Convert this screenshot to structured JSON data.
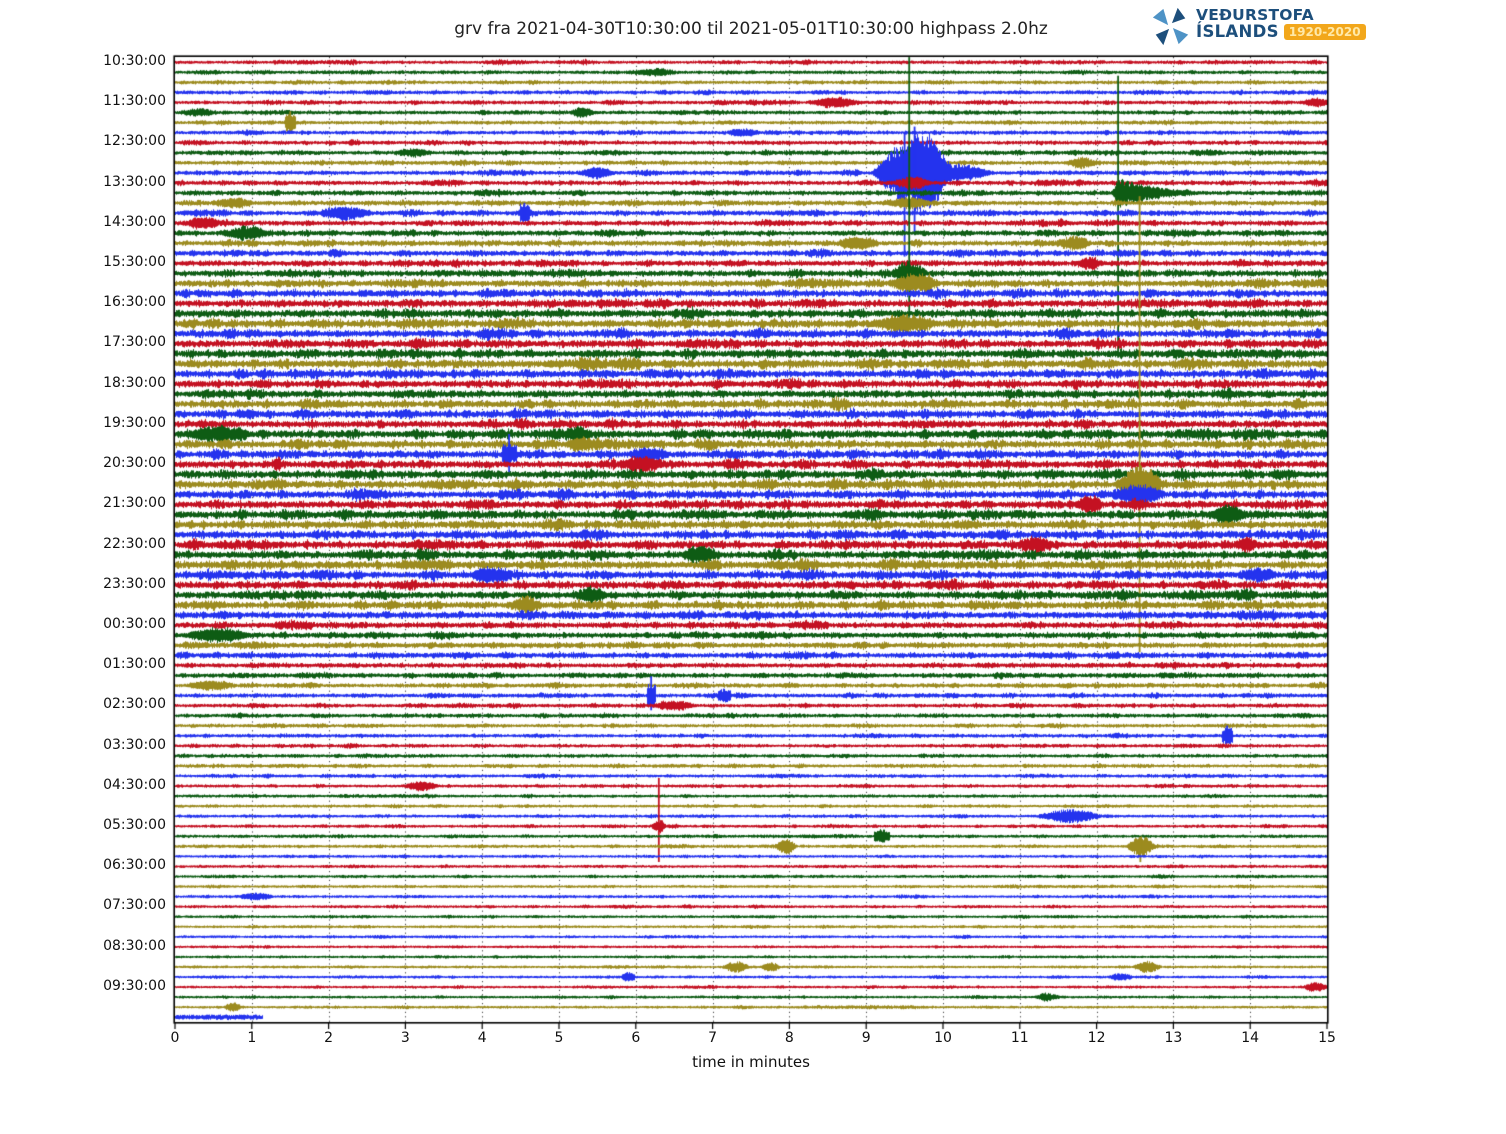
{
  "header": {
    "title": "grv fra 2021-04-30T10:30:00 til 2021-05-01T10:30:00 highpass 2.0hz",
    "logo": {
      "line1": "VEÐURSTOFA",
      "line2": "ÍSLANDS",
      "badge": "1920-2020",
      "text_color": "#1d4f7c",
      "badge_bg": "#f2a71b",
      "sail_dark": "#1d4f7c",
      "sail_light": "#4e93c6"
    }
  },
  "chart_data": {
    "type": "line",
    "subtype": "helicorder-drumplot",
    "station": "grv",
    "window_start": "2021-04-30T10:30:00",
    "window_end": "2021-05-01T10:30:00",
    "filter": "highpass 2.0hz",
    "xlabel": "time in minutes",
    "xlim": [
      0,
      15
    ],
    "x_ticks": [
      0,
      1,
      2,
      3,
      4,
      5,
      6,
      7,
      8,
      9,
      10,
      11,
      12,
      13,
      14,
      15
    ],
    "minutes_per_row": 15,
    "rows": 96,
    "row_start_first": "10:30:00",
    "y_tick_labels": [
      "10:30:00",
      "11:30:00",
      "12:30:00",
      "13:30:00",
      "14:30:00",
      "15:30:00",
      "16:30:00",
      "17:30:00",
      "18:30:00",
      "19:30:00",
      "20:30:00",
      "21:30:00",
      "22:30:00",
      "23:30:00",
      "00:30:00",
      "01:30:00",
      "02:30:00",
      "03:30:00",
      "04:30:00",
      "05:30:00",
      "06:30:00",
      "07:30:00",
      "08:30:00",
      "09:30:00"
    ],
    "trace_color_cycle": [
      "#c41122",
      "#0e5c14",
      "#9c8b1f",
      "#2433ee"
    ],
    "grid": {
      "vertical_per_minute": true,
      "style": "dotted",
      "color": "#2b2b2b"
    },
    "partial_last_row_end_minute": 1.15,
    "row_amplitudes": [
      1.2,
      1.3,
      1.3,
      1.3,
      1.4,
      1.4,
      1.4,
      1.5,
      1.5,
      1.6,
      1.6,
      1.7,
      1.8,
      1.8,
      1.9,
      2.0,
      2.0,
      2.1,
      2.2,
      2.3,
      2.4,
      2.6,
      2.9,
      3.0,
      3.1,
      3.2,
      3.6,
      3.3,
      3.3,
      3.4,
      3.6,
      3.3,
      3.2,
      3.3,
      3.4,
      3.3,
      3.3,
      3.5,
      3.4,
      3.3,
      3.3,
      3.4,
      3.6,
      3.4,
      3.4,
      3.5,
      3.3,
      3.4,
      3.4,
      3.5,
      3.6,
      3.3,
      3.2,
      3.3,
      3.2,
      3.0,
      2.6,
      2.4,
      2.3,
      2.2,
      2.0,
      1.8,
      1.7,
      1.6,
      1.5,
      1.4,
      1.3,
      1.3,
      1.2,
      1.2,
      1.2,
      1.1,
      1.1,
      1.0,
      1.0,
      1.0,
      1.0,
      1.0,
      1.0,
      0.9,
      0.9,
      0.9,
      0.9,
      0.9,
      0.9,
      0.8,
      0.8,
      0.8,
      0.8,
      0.8,
      0.8,
      0.8,
      0.8,
      0.8,
      0.8,
      1.6
    ],
    "events_format": "[row_index, minute, extra_amplitude_px, half_width_minutes, shape(sp|pk|ar)]",
    "events": [
      [
        1,
        6.25,
        3,
        0.3,
        "sp"
      ],
      [
        4,
        8.55,
        4,
        0.3,
        "sp"
      ],
      [
        4,
        14.85,
        3,
        0.2,
        "sp"
      ],
      [
        5,
        0.3,
        3,
        0.25,
        "sp"
      ],
      [
        5,
        5.3,
        4,
        0.18,
        "sp"
      ],
      [
        6,
        1.5,
        9,
        0.07,
        "pk"
      ],
      [
        7,
        7.4,
        3,
        0.25,
        "sp"
      ],
      [
        9,
        3.1,
        3,
        0.25,
        "sp"
      ],
      [
        10,
        11.8,
        4,
        0.22,
        "sp"
      ],
      [
        11,
        5.5,
        4,
        0.25,
        "sp"
      ],
      [
        11,
        9.55,
        30,
        0.5,
        "sp"
      ],
      [
        11,
        9.82,
        20,
        0.3,
        "sp"
      ],
      [
        11,
        10.15,
        8,
        0.5,
        "sp"
      ],
      [
        12,
        9.6,
        5,
        0.25,
        "sp"
      ],
      [
        13,
        12.28,
        13,
        0.35,
        "ar"
      ],
      [
        14,
        0.75,
        4,
        0.3,
        "sp"
      ],
      [
        14,
        9.55,
        5,
        0.3,
        "sp"
      ],
      [
        15,
        2.25,
        5,
        0.35,
        "sp"
      ],
      [
        15,
        4.55,
        8,
        0.07,
        "pk"
      ],
      [
        16,
        0.35,
        4,
        0.25,
        "sp"
      ],
      [
        17,
        0.95,
        5,
        0.3,
        "sp"
      ],
      [
        18,
        8.9,
        5,
        0.3,
        "sp"
      ],
      [
        18,
        11.7,
        4,
        0.25,
        "sp"
      ],
      [
        20,
        11.9,
        5,
        0.18,
        "sp"
      ],
      [
        21,
        9.56,
        11,
        0.25,
        "sp"
      ],
      [
        22,
        9.6,
        7,
        0.35,
        "sp"
      ],
      [
        26,
        9.5,
        5,
        0.5,
        "sp"
      ],
      [
        37,
        0.55,
        6,
        0.45,
        "sp"
      ],
      [
        37,
        5.25,
        6,
        0.2,
        "sp"
      ],
      [
        38,
        5.3,
        5,
        0.25,
        "sp"
      ],
      [
        39,
        4.35,
        8,
        0.1,
        "pk"
      ],
      [
        39,
        6.15,
        5,
        0.3,
        "sp"
      ],
      [
        40,
        6.05,
        6,
        0.3,
        "sp"
      ],
      [
        42,
        12.55,
        18,
        0.3,
        "sp"
      ],
      [
        43,
        12.55,
        8,
        0.35,
        "sp"
      ],
      [
        44,
        11.9,
        6,
        0.2,
        "sp"
      ],
      [
        45,
        13.7,
        6,
        0.3,
        "sp"
      ],
      [
        48,
        11.2,
        6,
        0.25,
        "sp"
      ],
      [
        48,
        13.95,
        6,
        0.15,
        "sp"
      ],
      [
        49,
        6.85,
        7,
        0.25,
        "sp"
      ],
      [
        51,
        4.1,
        6,
        0.3,
        "sp"
      ],
      [
        51,
        14.1,
        5,
        0.25,
        "sp"
      ],
      [
        53,
        5.4,
        5,
        0.25,
        "sp"
      ],
      [
        54,
        4.55,
        5,
        0.25,
        "sp"
      ],
      [
        57,
        0.55,
        6,
        0.45,
        "sp"
      ],
      [
        62,
        0.45,
        4,
        0.35,
        "sp"
      ],
      [
        63,
        6.2,
        12,
        0.06,
        "pk"
      ],
      [
        63,
        7.15,
        5,
        0.08,
        "pk"
      ],
      [
        64,
        6.5,
        4,
        0.3,
        "sp"
      ],
      [
        67,
        13.7,
        8,
        0.07,
        "pk"
      ],
      [
        72,
        3.2,
        4,
        0.25,
        "sp"
      ],
      [
        75,
        11.65,
        6,
        0.45,
        "sp"
      ],
      [
        76,
        6.3,
        6,
        0.1,
        "sp"
      ],
      [
        77,
        9.2,
        6,
        0.1,
        "pk"
      ],
      [
        78,
        7.95,
        7,
        0.15,
        "sp"
      ],
      [
        78,
        12.57,
        9,
        0.2,
        "sp"
      ],
      [
        83,
        1.05,
        3,
        0.25,
        "sp"
      ],
      [
        90,
        7.3,
        5,
        0.18,
        "sp"
      ],
      [
        90,
        7.75,
        4,
        0.14,
        "sp"
      ],
      [
        90,
        12.65,
        5,
        0.2,
        "sp"
      ],
      [
        91,
        5.9,
        4,
        0.08,
        "pk"
      ],
      [
        91,
        12.3,
        3,
        0.18,
        "sp"
      ],
      [
        92,
        14.85,
        4,
        0.18,
        "sp"
      ],
      [
        93,
        11.35,
        3,
        0.18,
        "sp"
      ],
      [
        94,
        0.75,
        4,
        0.12,
        "sp"
      ]
    ],
    "clip_lines_format": "[row_index, minute, up_px, down_px]",
    "clip_lines": [
      [
        6,
        1.5,
        11,
        9
      ],
      [
        11,
        9.5,
        40,
        84
      ],
      [
        11,
        9.63,
        46,
        62
      ],
      [
        13,
        12.28,
        117,
        165
      ],
      [
        15,
        4.55,
        10,
        8
      ],
      [
        21,
        9.56,
        216,
        48
      ],
      [
        39,
        4.35,
        20,
        18
      ],
      [
        42,
        12.56,
        288,
        168
      ],
      [
        63,
        6.2,
        19,
        15
      ],
      [
        67,
        13.7,
        10,
        8
      ],
      [
        76,
        6.3,
        48,
        36
      ],
      [
        78,
        12.57,
        9,
        16
      ]
    ]
  }
}
